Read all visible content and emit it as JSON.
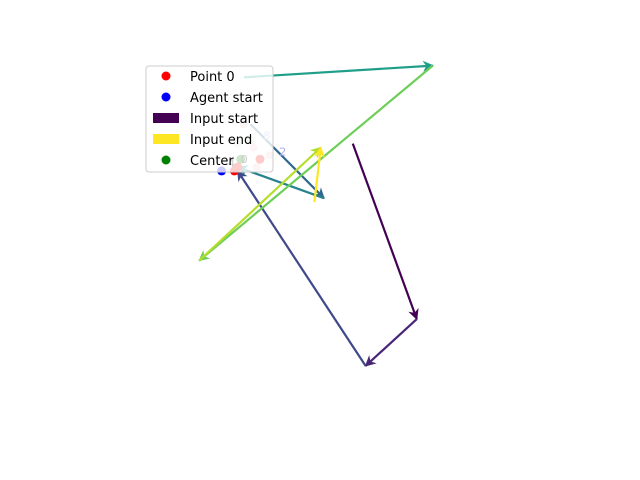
{
  "chart_data": {
    "type": "scatter",
    "title": "",
    "xlabel": "",
    "ylabel": "",
    "axes_visible": false,
    "grid": false,
    "legend_placement": "upper-left",
    "xlim": [
      0,
      1
    ],
    "ylim": [
      0,
      1
    ],
    "legend": [
      {
        "label": "Point 0",
        "marker": "circle",
        "color": "#ff0000"
      },
      {
        "label": "Agent start",
        "marker": "circle",
        "color": "#0000ff"
      },
      {
        "label": "Input start",
        "marker": "rect",
        "color": "#440154"
      },
      {
        "label": "Input end",
        "marker": "rect",
        "color": "#fde725"
      },
      {
        "label": "Center",
        "marker": "circle",
        "color": "#008000"
      }
    ],
    "point0": {
      "x": 0.18,
      "y": 0.7
    },
    "agent_start": {
      "x": 0.13,
      "y": 0.69
    },
    "center": {
      "x": 0.19,
      "y": 0.72
    },
    "red_points": [
      {
        "x": 0.17,
        "y": 0.69
      },
      {
        "x": 0.25,
        "y": 0.72
      }
    ],
    "faint_points": [
      {
        "x": 0.2,
        "y": 0.81,
        "color": "#f4b6c2"
      },
      {
        "x": 0.23,
        "y": 0.75,
        "color": "#f4b6c2"
      },
      {
        "x": 0.28,
        "y": 0.73,
        "color": "#f4b6c2"
      },
      {
        "x": 0.24,
        "y": 0.7,
        "color": "#f4b6c2"
      },
      {
        "x": 0.18,
        "y": 0.76,
        "color": "#c8e6c0"
      },
      {
        "x": 0.22,
        "y": 0.77,
        "color": "#c8e6c0"
      }
    ],
    "point_labels": [
      {
        "text": "4",
        "x": 0.15,
        "y": 0.7,
        "color": "#000000"
      },
      {
        "text": "0",
        "x": 0.19,
        "y": 0.71,
        "color": "#000000"
      },
      {
        "text": "2",
        "x": 0.31,
        "y": 0.73,
        "color": "#aaaaee"
      },
      {
        "text": "8",
        "x": 0.26,
        "y": 0.77,
        "color": "#aaaaee"
      }
    ],
    "arrows": [
      {
        "from": [
          0.54,
          0.76
        ],
        "to": [
          0.74,
          0.31
        ],
        "color": "#440154"
      },
      {
        "from": [
          0.74,
          0.31
        ],
        "to": [
          0.58,
          0.19
        ],
        "color": "#482576"
      },
      {
        "from": [
          0.58,
          0.19
        ],
        "to": [
          0.18,
          0.69
        ],
        "color": "#3e4a89"
      },
      {
        "from": [
          0.22,
          0.81
        ],
        "to": [
          0.45,
          0.62
        ],
        "color": "#31688e"
      },
      {
        "from": [
          0.45,
          0.62
        ],
        "to": [
          0.18,
          0.7
        ],
        "color": "#26828e"
      },
      {
        "from": [
          0.2,
          0.93
        ],
        "to": [
          0.79,
          0.96
        ],
        "color": "#1f9e89"
      },
      {
        "from": [
          0.79,
          0.96
        ],
        "to": [
          0.06,
          0.46
        ],
        "color": "#6ece58"
      },
      {
        "from": [
          0.06,
          0.46
        ],
        "to": [
          0.44,
          0.75
        ],
        "color": "#b5de2b"
      },
      {
        "from": [
          0.42,
          0.61
        ],
        "to": [
          0.44,
          0.75
        ],
        "color": "#fde725"
      }
    ]
  }
}
